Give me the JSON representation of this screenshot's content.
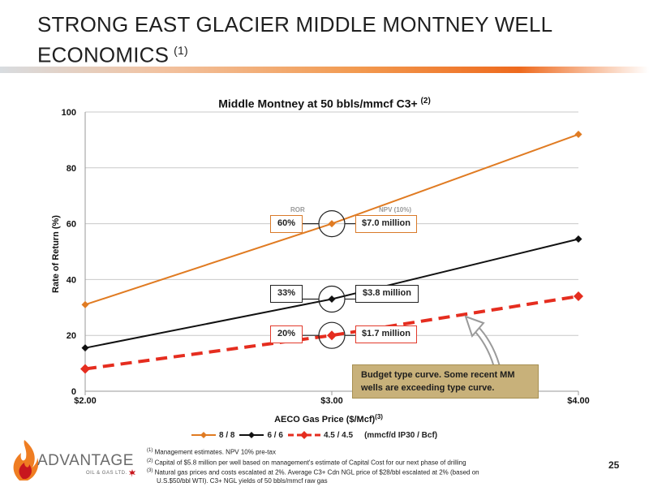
{
  "slide": {
    "title": "STRONG EAST GLACIER MIDDLE MONTNEY WELL ECONOMICS",
    "title_note": "(1)",
    "page_number": "25"
  },
  "chart_data": {
    "type": "line",
    "title": "Middle Montney at 50 bbls/mmcf C3+",
    "title_note": "(2)",
    "xlabel": "AECO Gas Price ($/Mcf)",
    "xlabel_note": "(3)",
    "ylabel": "Rate of Return (%)",
    "x": [
      2.0,
      3.0,
      4.0
    ],
    "x_tick_labels": [
      "$2.00",
      "$3.00",
      "$4.00"
    ],
    "ylim": [
      0,
      100
    ],
    "y_ticks": [
      0,
      20,
      40,
      60,
      80,
      100
    ],
    "grid": true,
    "legend_position": "bottom",
    "series": [
      {
        "name": "8 / 8",
        "values": [
          31,
          60,
          92
        ],
        "color": "#e07b22",
        "style": "solid",
        "marker": "diamond"
      },
      {
        "name": "6 / 6",
        "values": [
          15.5,
          33,
          54.5
        ],
        "color": "#111111",
        "style": "solid",
        "marker": "diamond"
      },
      {
        "name": "4.5 / 4.5",
        "values": [
          8,
          20,
          34
        ],
        "color": "#e52d1f",
        "style": "dashed",
        "marker": "diamond"
      }
    ],
    "legend_unit": "(mmcf/d IP30 / Bcf)",
    "column_headers": {
      "ror": "ROR",
      "npv": "NPV (10%)"
    },
    "annotations": [
      {
        "ror": "60%",
        "npv": "$7.0 million",
        "color": "orange"
      },
      {
        "ror": "33%",
        "npv": "$3.8 million",
        "color": "black"
      },
      {
        "ror": "20%",
        "npv": "$1.7 million",
        "color": "red"
      }
    ],
    "budget_note": "Budget type curve.  Some recent MM wells are exceeding type curve."
  },
  "footnotes": [
    {
      "mark": "(1)",
      "text": "Management estimates. NPV 10% pre-tax"
    },
    {
      "mark": "(2)",
      "text": "Capital of $5.8 million per well based on management's estimate of Capital Cost for our next phase of drilling"
    },
    {
      "mark": "(3)",
      "text": "Natural gas prices and costs escalated at 2%. Average C3+ Cdn NGL price of $28/bbl escalated at 2% (based on",
      "continuation": "U.S.$50/bbl WTI). C3+ NGL yields of 50 bbls/mmcf raw gas"
    }
  ],
  "logo": {
    "name": "ADVANTAGE",
    "subtitle": "OIL & GAS LTD."
  },
  "colors": {
    "accent_orange": "#e07b22",
    "accent_red": "#e52d1f",
    "budget_box": "#c8b17a"
  }
}
